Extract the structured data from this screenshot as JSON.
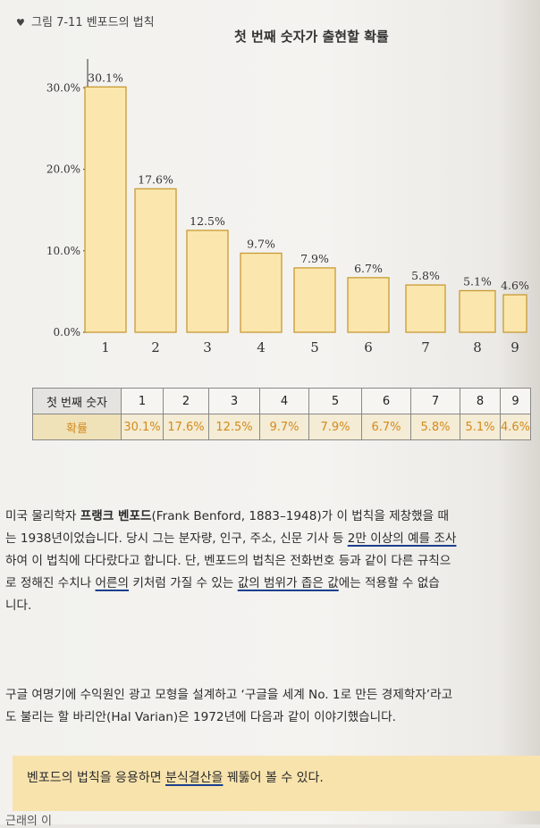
{
  "figure": {
    "caption": "그림 7-11 벤포드의 법칙",
    "caption_mark": "♥"
  },
  "chart_data": {
    "type": "bar",
    "title": "첫 번째 숫자가 출현할 확률",
    "categories": [
      "1",
      "2",
      "3",
      "4",
      "5",
      "6",
      "7",
      "8",
      "9"
    ],
    "values": [
      30.1,
      17.6,
      12.5,
      9.7,
      7.9,
      6.7,
      5.8,
      5.1,
      4.6
    ],
    "data_labels": [
      "30.1%",
      "17.6%",
      "12.5%",
      "9.7%",
      "7.9%",
      "6.7%",
      "5.8%",
      "5.1%",
      "4.6%"
    ],
    "y_ticks": [
      "0.0%",
      "10.0%",
      "20.0%",
      "30.0%"
    ],
    "y_tick_values": [
      0,
      10,
      20,
      30
    ],
    "ylim": [
      0,
      32
    ],
    "xlabel": "",
    "ylabel": "",
    "grid": false,
    "bar_color": "#fbe7ad",
    "bar_edge": "#c99a34"
  },
  "table": {
    "row1_head": "첫 번째 숫자",
    "row1": [
      "1",
      "2",
      "3",
      "4",
      "5",
      "6",
      "7",
      "8",
      "9"
    ],
    "row2_head": "확률",
    "row2": [
      "30.1%",
      "17.6%",
      "12.5%",
      "9.7%",
      "7.9%",
      "6.7%",
      "5.8%",
      "5.1%",
      "4.6%"
    ]
  },
  "para1": {
    "l1a": "미국 물리학자 ",
    "l1b": "프랭크 벤포드",
    "l1c": "(Frank Benford, 1883–1948)가 이 법칙을 제창했을 때",
    "l2a": "는 1938년이었습니다. 당시 그는 분자량, 인구, 주소, 신문 기사 등 ",
    "l2b": "2만 이상의 예를 조사",
    "l3": "하여 이 법칙에 다다랐다고 합니다. 단, 벤포드의 법칙은 전화번호 등과 같이 다른 규칙으",
    "l4a": "로 정해진 수치나 ",
    "l4b": "어른의",
    "l4c": " 키처럼 가질 수 있는 ",
    "l4d": "값의 범위가 좁은 값",
    "l4e": "에는 적용할 수 없습",
    "l5": "니다."
  },
  "para2": {
    "l1": "구글 여명기에 수익원인 광고 모형을 설계하고 ‘구글을 세계 No. 1로 만든 경제학자’라고",
    "l2": "도 불리는 할 바리안(Hal Varian)은 1972년에 다음과 같이 이야기했습니다."
  },
  "quote": {
    "a": "벤포드의 법칙을 응용하면 ",
    "b": "분식결산을",
    "c": " 꿰뚫어 볼 수 있다."
  },
  "bottom_cut": "근래의 이"
}
